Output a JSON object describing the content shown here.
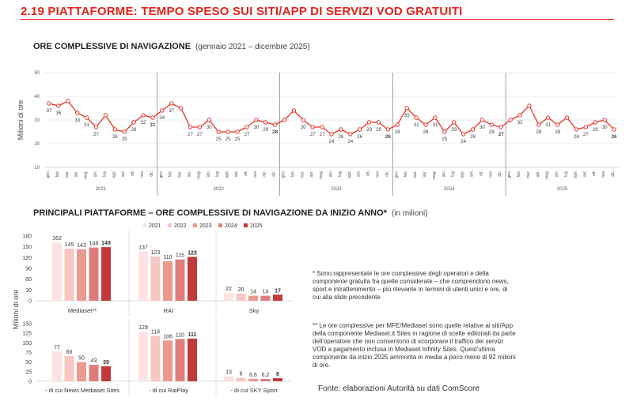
{
  "header": {
    "title": "2.19 PIATTAFORME: TEMPO SPESO SUI SITI/APP DI SERVIZI VOD GRATUITI",
    "line_title": "ORE COMPLESSIVE DI NAVIGAZIONE",
    "line_note": "(gennaio 2021 – dicembre 2025)",
    "bar_title": "PRINCIPALI PIATTAFORME – ORE COMPLESSIVE DI NAVIGAZIONE DA INIZIO ANNO*",
    "bar_note": "(in milioni)"
  },
  "colors": {
    "accent": "#e2231a",
    "line": "#e5332a",
    "grid": "#d9d9d9",
    "y2021": "#fbe3e3",
    "y2022": "#f6c7c2",
    "y2023": "#ec9990",
    "y2024": "#e07c7c",
    "y2025": "#c0393b"
  },
  "chart_data": [
    {
      "type": "line",
      "title": "ORE COMPLESSIVE DI NAVIGAZIONE",
      "ylabel": "Milioni di ore",
      "ylim": [
        10,
        50
      ],
      "yticks": [
        10,
        20,
        30,
        40,
        50
      ],
      "grid": true,
      "month_labels": [
        "gen.",
        "feb.",
        "mar.",
        "apr.",
        "mag.",
        "giu.",
        "lug.",
        "ago.",
        "set.",
        "ott.",
        "nov.",
        "dic."
      ],
      "years": [
        "2021",
        "2022",
        "2023",
        "2024",
        "2025"
      ],
      "values": [
        37,
        36,
        38,
        33,
        31,
        27,
        32,
        26,
        25,
        29,
        32,
        31,
        34,
        37,
        35,
        27,
        27,
        30,
        25,
        25,
        25,
        27,
        30,
        29,
        28,
        30,
        34,
        30,
        27,
        27,
        24,
        26,
        24,
        26,
        29,
        29,
        26,
        28,
        35,
        31,
        28,
        31,
        25,
        29,
        24,
        26,
        30,
        28,
        27,
        30,
        32,
        36,
        28,
        31,
        28,
        31,
        26,
        27,
        29,
        30,
        26
      ],
      "labels": [
        "37",
        "36",
        "",
        "33",
        "31",
        "27",
        "",
        "26",
        "25",
        "29",
        "32",
        "31",
        "34",
        "37",
        "",
        "27",
        "27",
        "30",
        "25",
        "25",
        "25",
        "27",
        "30",
        "29",
        "28",
        "",
        "",
        "30",
        "27",
        "27",
        "24",
        "26",
        "24",
        "26",
        "29",
        "29",
        "26",
        "28",
        "35",
        "31",
        "28",
        "31",
        "25",
        "29",
        "24",
        "26",
        "30",
        "28",
        "27",
        "",
        "32",
        "",
        "28",
        "31",
        "28",
        "",
        "26",
        "27",
        "29",
        "30",
        "26"
      ],
      "bold_labels": [
        11,
        24,
        36,
        48,
        60
      ]
    },
    {
      "type": "bar",
      "title": "PRINCIPALI PIATTAFORME – ORE COMPLESSIVE DI NAVIGAZIONE DA INIZIO ANNO*",
      "ylabel": "Milioni di ore",
      "series_names": [
        "2021",
        "2022",
        "2023",
        "2024",
        "2025"
      ],
      "top": {
        "ylim": [
          0,
          180
        ],
        "yticks": [
          0,
          30,
          60,
          90,
          120,
          150,
          180
        ],
        "groups": [
          {
            "name": "Mediaset**",
            "values": [
              162,
              145,
              143,
              148,
              149
            ],
            "labels": [
              "162",
              "145",
              "143",
              "148",
              "149"
            ]
          },
          {
            "name": "RAI",
            "values": [
              137,
              123,
              110,
              115,
              122
            ],
            "labels": [
              "137",
              "123",
              "110",
              "115",
              "122"
            ]
          },
          {
            "name": "Sky",
            "values": [
              22,
              20,
              14,
              14,
              17
            ],
            "labels": [
              "22",
              "20",
              "14",
              "14",
              "17"
            ]
          }
        ]
      },
      "bottom": {
        "ylim": [
          0,
          150
        ],
        "yticks": [
          0,
          25,
          50,
          75,
          100,
          125,
          150
        ],
        "groups": [
          {
            "name": "- di cui News Mediaset Sites",
            "values": [
              77,
              66,
              50,
              43,
              39
            ],
            "labels": [
              "77",
              "66",
              "50",
              "43",
              "39"
            ]
          },
          {
            "name": "- di cui RaiPlay",
            "values": [
              129,
              118,
              106,
              110,
              111
            ],
            "labels": [
              "129",
              "118",
              "106",
              "110",
              "111"
            ]
          },
          {
            "name": "- di cui SKY Sport",
            "values": [
              13,
              9,
              6.6,
              6.2,
              8
            ],
            "labels": [
              "13",
              "9",
              "6,6",
              "6,2",
              "8"
            ]
          }
        ]
      }
    }
  ],
  "footnotes": {
    "n1": "* Sono rappresentate le ore complessive degli operatori e della componente gratuita fra quelle considerate – che comprendono news, sport e intrattenimento – più rilevante in termini di utenti unici e ore, di cui alla slide precedente",
    "n2": "** Le ore complessive per MFE/Mediaset sono quelle relative ai siti/App della componente Mediaset.it Sites in ragione di scelte editoriali da parte dell'operatore che non consentono di scorporare il traffico dei servizi VOD a pagamento inclusa in Mediaset Infinity Sites. Quest'ultima componente da inizio 2025 ammonta in media a poco meno di 92 milioni di ore.",
    "source": "Fonte: elaborazioni Autorità su dati ComScore"
  }
}
